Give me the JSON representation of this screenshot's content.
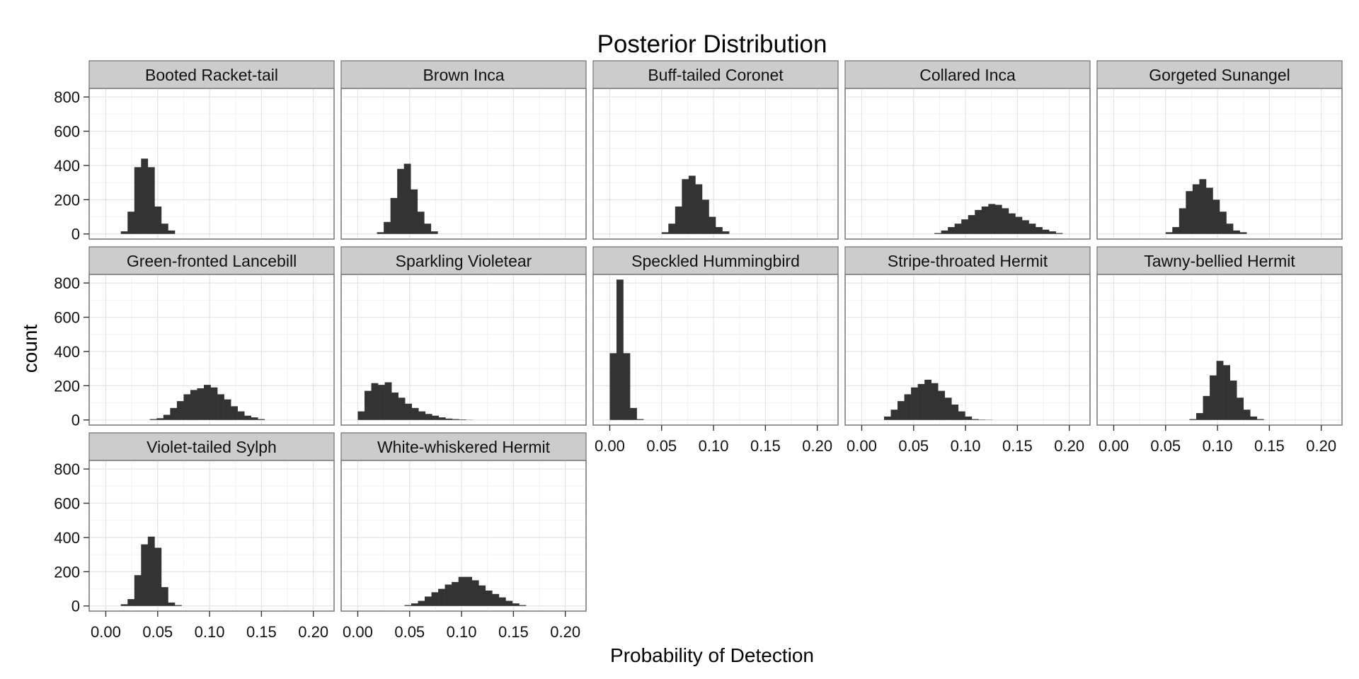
{
  "chart_data": {
    "type": "bar",
    "title": "Posterior Distribution",
    "xlabel": "Probability of Detection",
    "ylabel": "count",
    "xlim": [
      -0.016,
      0.22
    ],
    "ylim": [
      -30,
      850
    ],
    "x_ticks": [
      0.0,
      0.05,
      0.1,
      0.15,
      0.2
    ],
    "x_tick_labels": [
      "0.00",
      "0.05",
      "0.10",
      "0.15",
      "0.20"
    ],
    "y_ticks": [
      0,
      200,
      400,
      600,
      800
    ],
    "y_tick_labels": [
      "0",
      "200",
      "400",
      "600",
      "800"
    ],
    "bin_width": 0.0065,
    "grid": true,
    "facet_cols": 5,
    "panels": [
      {
        "name": "Booted Racket-tail",
        "bin_start": 0.0145,
        "counts": [
          15,
          130,
          390,
          440,
          390,
          160,
          60,
          20
        ]
      },
      {
        "name": "Brown Inca",
        "bin_start": 0.0185,
        "counts": [
          10,
          70,
          210,
          380,
          410,
          260,
          130,
          60,
          15
        ]
      },
      {
        "name": "Buff-tailed Coronet",
        "bin_start": 0.05,
        "counts": [
          10,
          60,
          160,
          320,
          340,
          290,
          200,
          100,
          40,
          15
        ]
      },
      {
        "name": "Collared Inca",
        "bin_start": 0.07,
        "counts": [
          5,
          20,
          40,
          60,
          85,
          110,
          140,
          160,
          175,
          170,
          150,
          120,
          100,
          80,
          60,
          40,
          25,
          15,
          5
        ]
      },
      {
        "name": "Gorgeted Sunangel",
        "bin_start": 0.05,
        "counts": [
          10,
          40,
          150,
          250,
          290,
          320,
          270,
          200,
          130,
          60,
          20,
          10
        ]
      },
      {
        "name": "Green-fronted Lancebill",
        "bin_start": 0.0425,
        "counts": [
          5,
          10,
          30,
          70,
          110,
          150,
          175,
          185,
          205,
          190,
          150,
          120,
          80,
          50,
          25,
          15,
          5
        ]
      },
      {
        "name": "Sparkling Violetear",
        "bin_start": 0.0,
        "counts": [
          50,
          170,
          215,
          205,
          220,
          160,
          130,
          95,
          70,
          50,
          35,
          25,
          15,
          8,
          5,
          3,
          1
        ]
      },
      {
        "name": "Speckled Hummingbird",
        "bin_start": 0.0,
        "counts": [
          390,
          820,
          390,
          70,
          5
        ]
      },
      {
        "name": "Stripe-throated Hermit",
        "bin_start": 0.0215,
        "counts": [
          20,
          60,
          110,
          150,
          190,
          210,
          235,
          215,
          170,
          130,
          90,
          50,
          20,
          5,
          2,
          1
        ]
      },
      {
        "name": "Tawny-bellied Hermit",
        "bin_start": 0.073,
        "counts": [
          5,
          40,
          140,
          260,
          345,
          320,
          230,
          130,
          60,
          20,
          5
        ]
      },
      {
        "name": "Violet-tailed Sylph",
        "bin_start": 0.0145,
        "counts": [
          10,
          40,
          180,
          360,
          405,
          340,
          110,
          20,
          5
        ]
      },
      {
        "name": "White-whiskered Hermit",
        "bin_start": 0.045,
        "counts": [
          5,
          15,
          30,
          55,
          80,
          100,
          125,
          140,
          170,
          170,
          150,
          120,
          90,
          70,
          50,
          30,
          15,
          5
        ]
      }
    ]
  }
}
